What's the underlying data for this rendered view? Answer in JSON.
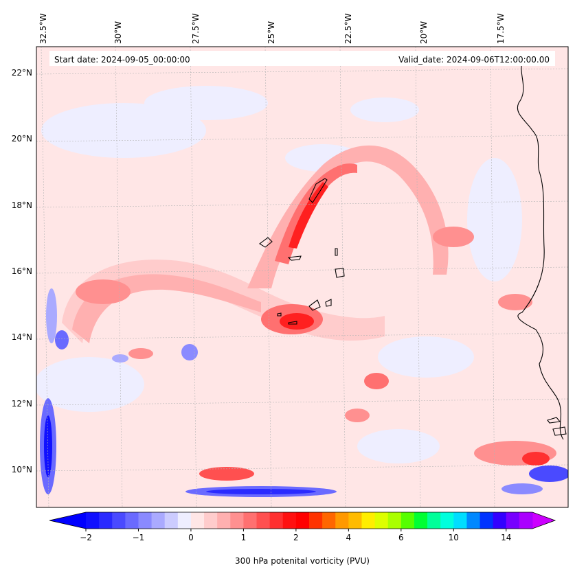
{
  "header": {
    "start_date": "Start date: 2024-09-05_00:00:00",
    "valid_date": "Valid_date: 2024-09-06T12:00:00.00"
  },
  "lon_labels": [
    "32.5°W",
    "30°W",
    "27.5°W",
    "25°W",
    "22.5°W",
    "20°W",
    "17.5°W"
  ],
  "lat_labels": [
    "22°N",
    "20°N",
    "18°N",
    "16°N",
    "14°N",
    "12°N",
    "10°N"
  ],
  "colorbar": {
    "title": "300 hPa potenital vorticity (PVU)",
    "tick_labels": [
      "−2",
      "−1",
      "0",
      "1",
      "2",
      "4",
      "6",
      "10",
      "14"
    ],
    "colors": [
      "#1010ff",
      "#2a2aff",
      "#4a4aff",
      "#6a6aff",
      "#8a8aff",
      "#aaaaff",
      "#ccccff",
      "#eeeeff",
      "#ffe6e6",
      "#ffcccc",
      "#ffb0b0",
      "#ff9090",
      "#ff7070",
      "#ff5050",
      "#ff3030",
      "#ff1010",
      "#ff0000",
      "#ff3300",
      "#ff6600",
      "#ff9900",
      "#ffbb00",
      "#ffee00",
      "#ddff00",
      "#aaff00",
      "#55ff00",
      "#00ff33",
      "#00ff99",
      "#00ffdd",
      "#00ddff",
      "#0088ff",
      "#0033ff",
      "#3300ff",
      "#7700ff",
      "#aa00ff"
    ],
    "extend_low": "#0000ff",
    "extend_high": "#cc00ff"
  },
  "colors": {
    "background_field": "#ffe6e6",
    "coast": "#000000"
  }
}
